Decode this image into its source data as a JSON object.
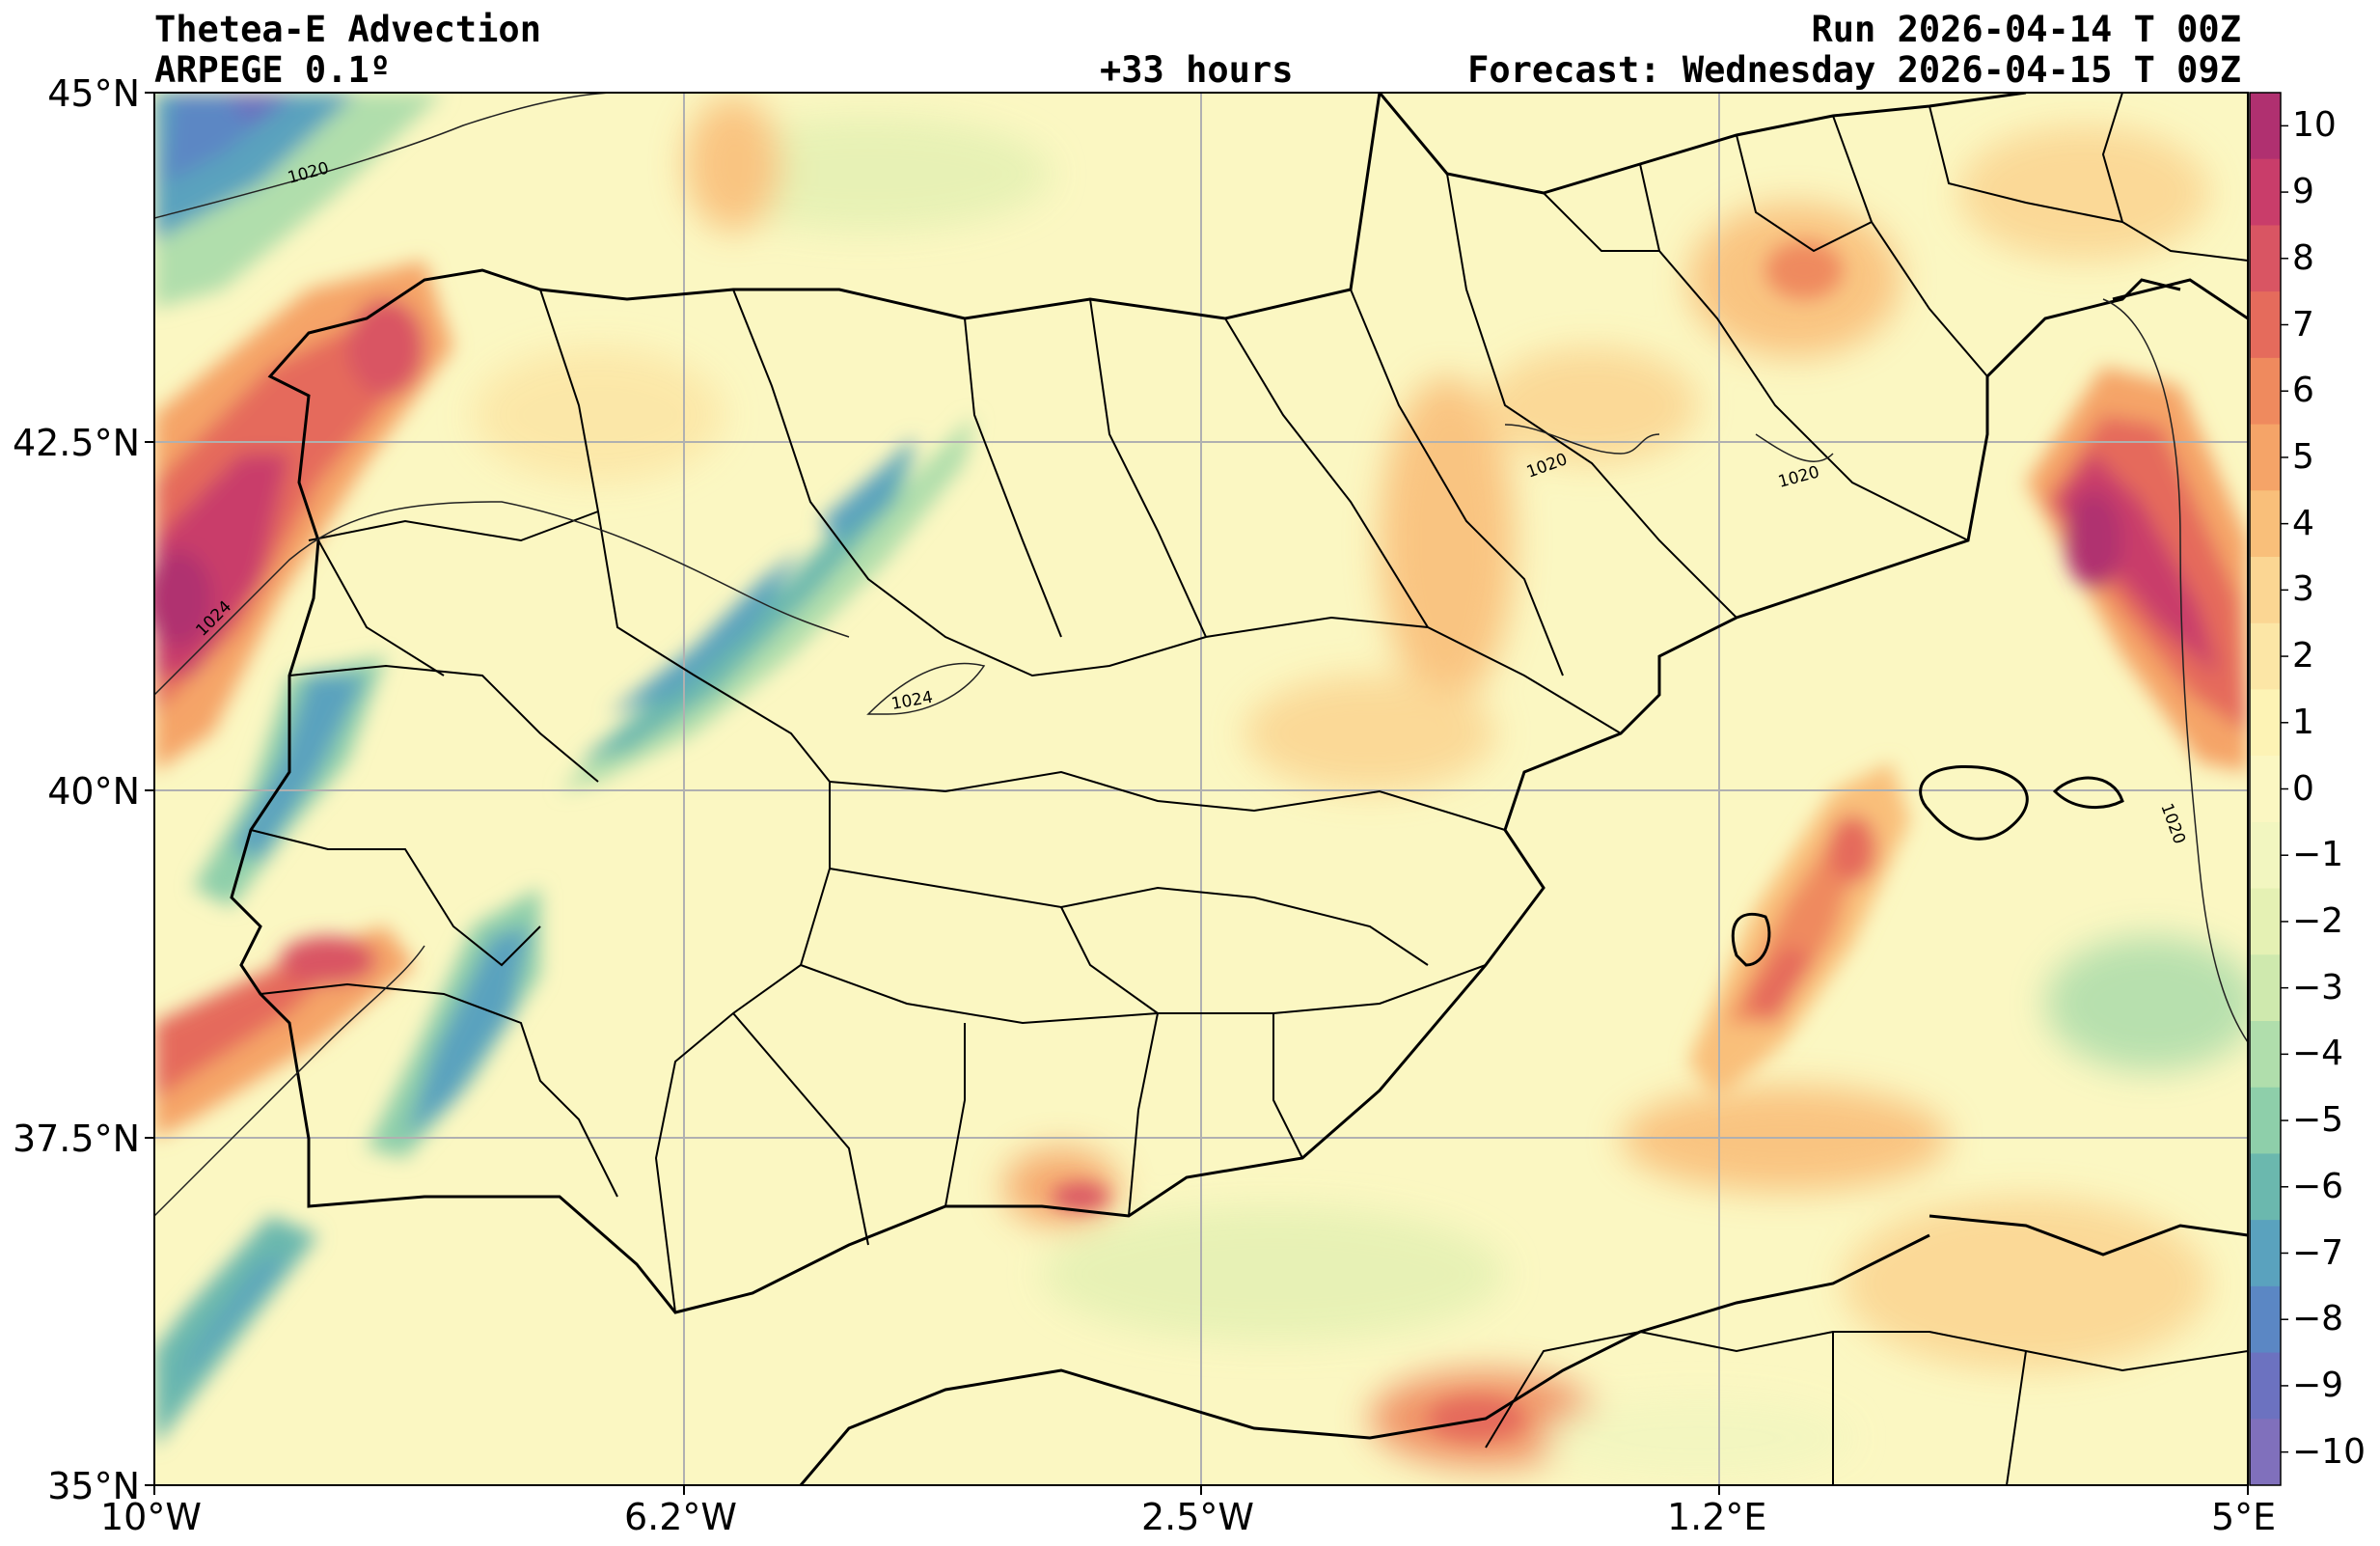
{
  "header": {
    "title": "Thetea-E Advection",
    "model": "ARPEGE 0.1º",
    "lead": "+33 hours",
    "run": "Run 2026-04-14 T 00Z",
    "forecast": "Forecast: Wednesday 2026-04-15 T 09Z"
  },
  "axes": {
    "lat_labels": [
      "45°N",
      "42.5°N",
      "40°N",
      "37.5°N",
      "35°N"
    ],
    "lon_labels": [
      "10°W",
      "6.2°W",
      "2.5°W",
      "1.2°E",
      "5°E"
    ],
    "lat_range": [
      35,
      45
    ],
    "lon_range": [
      -10,
      5
    ]
  },
  "colorbar": {
    "labels": [
      "10",
      "9",
      "8",
      "7",
      "6",
      "5",
      "4",
      "3",
      "2",
      "1",
      "0",
      "−1",
      "−2",
      "−3",
      "−4",
      "−5",
      "−6",
      "−7",
      "−8",
      "−9",
      "−10"
    ],
    "colors": [
      "#b03070",
      "#c93d6a",
      "#d95563",
      "#e56b5c",
      "#ef8a5e",
      "#f5a468",
      "#f9bf7a",
      "#fbd693",
      "#fce6a6",
      "#fdf3b5",
      "#fbf7c2",
      "#f2f6c0",
      "#e5f1b4",
      "#cfe9ae",
      "#b0deac",
      "#8ecfaa",
      "#6bb8ae",
      "#5aa2be",
      "#5b87c4",
      "#6c72c0",
      "#8070bc"
    ]
  },
  "isobars": {
    "labels": [
      "1020",
      "1024",
      "1024",
      "1020",
      "1020",
      "1020"
    ]
  },
  "legend_colors": {
    "ocean_background": "#fbf7c2",
    "grid": "#b0b0b0",
    "coast": "#000000"
  }
}
